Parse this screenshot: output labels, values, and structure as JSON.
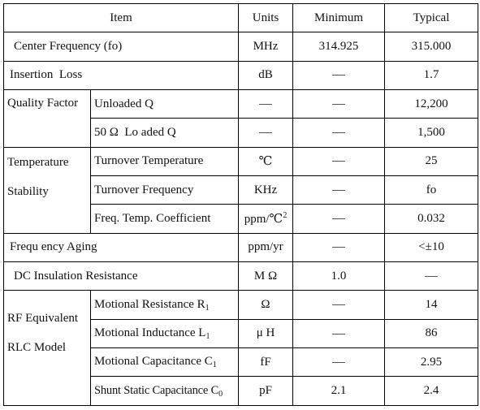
{
  "header": {
    "item": "Item",
    "units": "Units",
    "minimum": "Minimum",
    "typical": "Typical"
  },
  "rows": {
    "center_frequency": {
      "label": "Center Frequency (fo)",
      "units": "MHz",
      "minimum": "314.925",
      "typical": "315.000"
    },
    "insertion_loss": {
      "label": "Insertion  Loss",
      "units": "dB",
      "typical": "1.7"
    },
    "quality_factor": {
      "group": "Quality Factor",
      "unloaded_q": {
        "label": "Unloaded Q",
        "typical": "12,200"
      },
      "loaded_q": {
        "label": "50 Ω  Lo aded Q",
        "typical": "1,500"
      }
    },
    "temperature_stability": {
      "group_line1": "Temperature",
      "group_line2": "Stability",
      "turnover_temperature": {
        "label": "Turnover Temperature",
        "units": "℃",
        "typical": "25"
      },
      "turnover_frequency": {
        "label": "Turnover Frequency",
        "units": "KHz",
        "typical": "fo"
      },
      "ftc": {
        "label": "Freq. Temp. Coefficient",
        "units": "ppm/℃",
        "units_sup": "2",
        "typical": "0.032"
      }
    },
    "frequency_aging": {
      "label": "Frequ ency Aging",
      "units": "ppm/yr",
      "typical": "<±10"
    },
    "dc_insulation": {
      "label": "DC Insulation Resistance",
      "units": "M Ω",
      "minimum": "1.0"
    },
    "rlc_model": {
      "group_line1": "RF Equivalent",
      "group_line2": "RLC Model",
      "motional_resistance": {
        "label": "Motional Resistance R",
        "sub": "1",
        "units": "Ω",
        "typical": "14"
      },
      "motional_inductance": {
        "label": "Motional Inductance L",
        "sub": "1",
        "units": "μ H",
        "typical": "86"
      },
      "motional_capacitance": {
        "label": "Motional Capacitance C",
        "sub": "1",
        "units": "fF",
        "typical": "2.95"
      },
      "shunt_capacitance": {
        "label": "Shunt Static Capacitance C",
        "sub": "0",
        "units": "pF",
        "minimum": "2.1",
        "typical": "2.4"
      }
    }
  }
}
